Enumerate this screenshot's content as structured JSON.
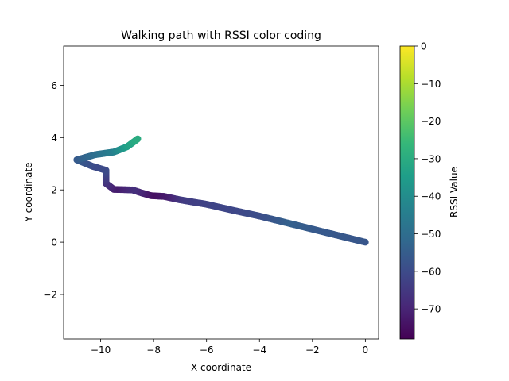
{
  "chart_data": {
    "type": "scatter",
    "title": "Walking path with RSSI color coding",
    "xlabel": "X coordinate",
    "ylabel": "Y coordinate",
    "xlim": [
      -11.4,
      0.5
    ],
    "ylim": [
      -3.7,
      7.5
    ],
    "xticks": [
      -10,
      -8,
      -6,
      -4,
      -2,
      0
    ],
    "xtick_labels": [
      "−10",
      "−8",
      "−6",
      "−4",
      "−2",
      "0"
    ],
    "yticks": [
      -2,
      0,
      2,
      4,
      6
    ],
    "ytick_labels": [
      "−2",
      "0",
      "2",
      "4",
      "6"
    ],
    "grid": false,
    "marker_color_map": "viridis",
    "colorbar": {
      "label": "RSSI Value",
      "range": [
        -78,
        0
      ],
      "ticks": [
        0,
        -10,
        -20,
        -30,
        -40,
        -50,
        -60,
        -70
      ],
      "tick_labels": [
        "0",
        "−10",
        "−20",
        "−30",
        "−40",
        "−50",
        "−60",
        "−70"
      ],
      "stops": [
        "#440154",
        "#482878",
        "#3e4989",
        "#31688e",
        "#26828e",
        "#1f9e89",
        "#35b779",
        "#6ece58",
        "#b5de2b",
        "#fde725"
      ]
    },
    "points": [
      {
        "x": 0.0,
        "y": 0.0,
        "rssi": -57
      },
      {
        "x": -2.0,
        "y": 0.5,
        "rssi": -56
      },
      {
        "x": -3.0,
        "y": 0.75,
        "rssi": -54
      },
      {
        "x": -4.0,
        "y": 1.0,
        "rssi": -59
      },
      {
        "x": -5.0,
        "y": 1.22,
        "rssi": -61
      },
      {
        "x": -6.0,
        "y": 1.45,
        "rssi": -62
      },
      {
        "x": -7.0,
        "y": 1.62,
        "rssi": -64
      },
      {
        "x": -7.6,
        "y": 1.75,
        "rssi": -72
      },
      {
        "x": -8.1,
        "y": 1.78,
        "rssi": -75
      },
      {
        "x": -8.5,
        "y": 1.9,
        "rssi": -70
      },
      {
        "x": -8.8,
        "y": 2.0,
        "rssi": -67
      },
      {
        "x": -9.5,
        "y": 2.02,
        "rssi": -72
      },
      {
        "x": -9.8,
        "y": 2.25,
        "rssi": -67
      },
      {
        "x": -9.8,
        "y": 2.75,
        "rssi": -60
      },
      {
        "x": -10.3,
        "y": 2.9,
        "rssi": -60
      },
      {
        "x": -10.9,
        "y": 3.15,
        "rssi": -56
      },
      {
        "x": -10.2,
        "y": 3.35,
        "rssi": -50
      },
      {
        "x": -9.5,
        "y": 3.45,
        "rssi": -44
      },
      {
        "x": -9.0,
        "y": 3.65,
        "rssi": -34
      },
      {
        "x": -8.6,
        "y": 3.95,
        "rssi": -30
      }
    ]
  }
}
